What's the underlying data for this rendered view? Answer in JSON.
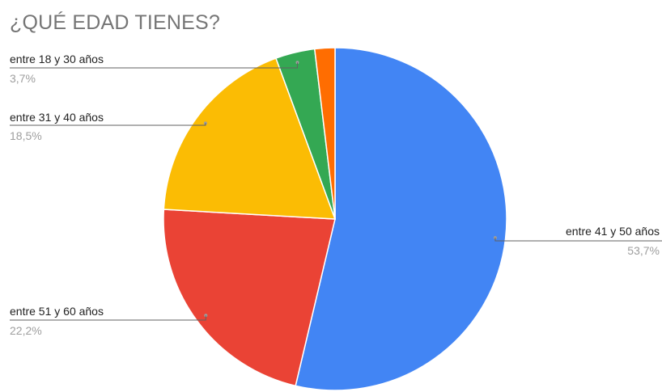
{
  "chart_data": {
    "type": "pie",
    "title": "¿QUÉ EDAD TIENES?",
    "slices": [
      {
        "label": "entre 41 y 50 años",
        "value": 53.7,
        "display": "53,7%",
        "color": "#4285f4"
      },
      {
        "label": "entre 51 y 60 años",
        "value": 22.2,
        "display": "22,2%",
        "color": "#ea4335"
      },
      {
        "label": "entre 31 y 40 años",
        "value": 18.5,
        "display": "18,5%",
        "color": "#fbbc04"
      },
      {
        "label": "entre 18 y 30 años",
        "value": 3.7,
        "display": "3,7%",
        "color": "#34a853"
      },
      {
        "label": "",
        "value": 1.9,
        "display": "",
        "color": "#ff6d01"
      }
    ],
    "legend": "none"
  }
}
